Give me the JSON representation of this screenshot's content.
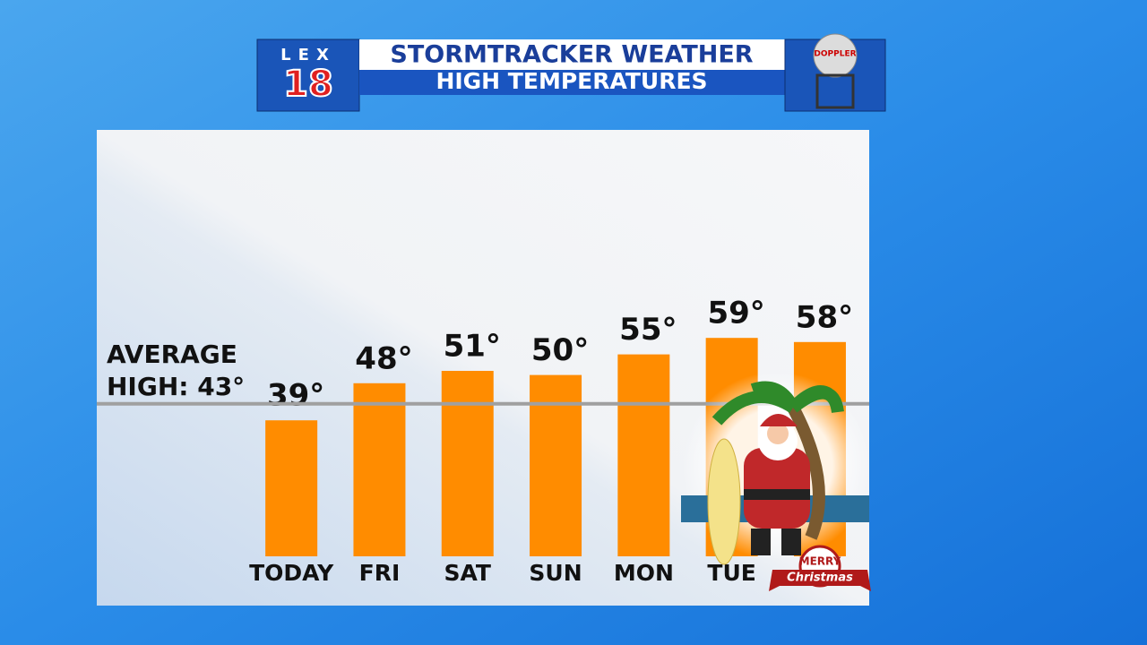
{
  "header": {
    "logo_top": "LEX",
    "logo_number": "18",
    "title": "STORMTRACKER WEATHER",
    "subtitle": "HIGH TEMPERATURES",
    "tower_label": "DOPPLER"
  },
  "chart_data": {
    "type": "bar",
    "categories": [
      "TODAY",
      "FRI",
      "SAT",
      "SUN",
      "MON",
      "TUE",
      null
    ],
    "values": [
      39,
      48,
      51,
      50,
      55,
      59,
      58
    ],
    "value_labels": [
      "39°",
      "48°",
      "51°",
      "50°",
      "55°",
      "59°",
      "58°"
    ],
    "color": "#ff8c00",
    "ylim": [
      6,
      110
    ],
    "average": 43,
    "average_label": [
      "AVERAGE",
      "HIGH: 43°"
    ],
    "average_color": "#a0a0a0"
  },
  "badge": {
    "line1": "MERRY",
    "line2": "Christmas"
  }
}
